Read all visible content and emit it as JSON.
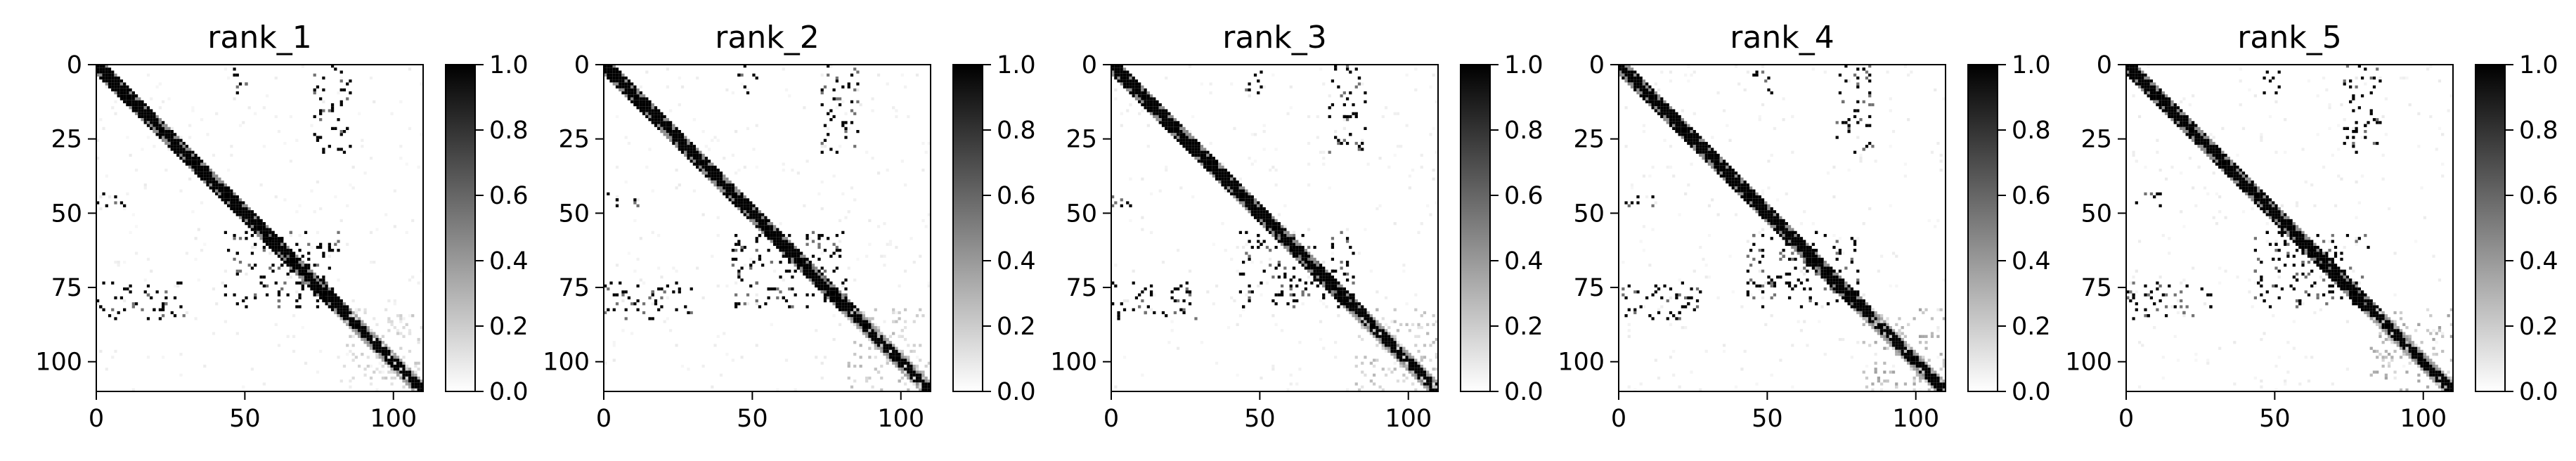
{
  "chart_data": [
    {
      "type": "heatmap",
      "title": "rank_1",
      "matrix_size": 110,
      "xlim": [
        0,
        110
      ],
      "ylim": [
        110,
        0
      ],
      "xticks": [
        "0",
        "50",
        "100"
      ],
      "yticks": [
        "0",
        "25",
        "50",
        "75",
        "100"
      ],
      "colorbar": {
        "ticks": [
          "0.0",
          "0.2",
          "0.4",
          "0.6",
          "0.8",
          "1.0"
        ],
        "range": [
          0,
          1
        ],
        "colormap": "gray_r"
      },
      "diagonal_band": {
        "from": 0,
        "to": 110,
        "value": 1.0
      },
      "block_clusters": [
        {
          "rows": [
            0,
            10
          ],
          "cols": [
            45,
            52
          ],
          "value": 1.0
        },
        {
          "rows": [
            0,
            30
          ],
          "cols": [
            73,
            86
          ],
          "value": 1.0
        },
        {
          "rows": [
            43,
            48
          ],
          "cols": [
            0,
            12
          ],
          "value": 1.0
        },
        {
          "rows": [
            73,
            86
          ],
          "cols": [
            0,
            30
          ],
          "value": 1.0
        },
        {
          "rows": [
            56,
            82
          ],
          "cols": [
            43,
            82
          ],
          "value": 1.0
        },
        {
          "rows": [
            82,
            110
          ],
          "cols": [
            82,
            110
          ],
          "value": 0.15
        }
      ]
    },
    {
      "type": "heatmap",
      "title": "rank_2",
      "matrix_size": 110,
      "xlim": [
        0,
        110
      ],
      "ylim": [
        110,
        0
      ],
      "xticks": [
        "0",
        "50",
        "100"
      ],
      "yticks": [
        "0",
        "25",
        "50",
        "75",
        "100"
      ],
      "colorbar": {
        "ticks": [
          "0.0",
          "0.2",
          "0.4",
          "0.6",
          "0.8",
          "1.0"
        ],
        "range": [
          0,
          1
        ],
        "colormap": "gray_r"
      },
      "diagonal_band": {
        "from": 0,
        "to": 110,
        "value": 1.0
      },
      "block_clusters": [
        {
          "rows": [
            0,
            10
          ],
          "cols": [
            45,
            52
          ],
          "value": 1.0
        },
        {
          "rows": [
            0,
            30
          ],
          "cols": [
            73,
            86
          ],
          "value": 1.0
        },
        {
          "rows": [
            43,
            48
          ],
          "cols": [
            0,
            12
          ],
          "value": 1.0
        },
        {
          "rows": [
            73,
            86
          ],
          "cols": [
            0,
            30
          ],
          "value": 1.0
        },
        {
          "rows": [
            56,
            82
          ],
          "cols": [
            43,
            82
          ],
          "value": 1.0
        },
        {
          "rows": [
            82,
            110
          ],
          "cols": [
            82,
            110
          ],
          "value": 0.2
        }
      ]
    },
    {
      "type": "heatmap",
      "title": "rank_3",
      "matrix_size": 110,
      "xlim": [
        0,
        110
      ],
      "ylim": [
        110,
        0
      ],
      "xticks": [
        "0",
        "50",
        "100"
      ],
      "yticks": [
        "0",
        "25",
        "50",
        "75",
        "100"
      ],
      "colorbar": {
        "ticks": [
          "0.0",
          "0.2",
          "0.4",
          "0.6",
          "0.8",
          "1.0"
        ],
        "range": [
          0,
          1
        ],
        "colormap": "gray_r"
      },
      "diagonal_band": {
        "from": 0,
        "to": 110,
        "value": 1.0
      },
      "block_clusters": [
        {
          "rows": [
            0,
            10
          ],
          "cols": [
            45,
            52
          ],
          "value": 1.0
        },
        {
          "rows": [
            0,
            30
          ],
          "cols": [
            73,
            86
          ],
          "value": 1.0
        },
        {
          "rows": [
            43,
            48
          ],
          "cols": [
            0,
            12
          ],
          "value": 1.0
        },
        {
          "rows": [
            73,
            86
          ],
          "cols": [
            0,
            30
          ],
          "value": 1.0
        },
        {
          "rows": [
            56,
            82
          ],
          "cols": [
            43,
            82
          ],
          "value": 1.0
        },
        {
          "rows": [
            82,
            110
          ],
          "cols": [
            82,
            110
          ],
          "value": 0.2
        }
      ]
    },
    {
      "type": "heatmap",
      "title": "rank_4",
      "matrix_size": 110,
      "xlim": [
        0,
        110
      ],
      "ylim": [
        110,
        0
      ],
      "xticks": [
        "0",
        "50",
        "100"
      ],
      "yticks": [
        "0",
        "25",
        "50",
        "75",
        "100"
      ],
      "colorbar": {
        "ticks": [
          "0.0",
          "0.2",
          "0.4",
          "0.6",
          "0.8",
          "1.0"
        ],
        "range": [
          0,
          1
        ],
        "colormap": "gray_r"
      },
      "diagonal_band": {
        "from": 0,
        "to": 110,
        "value": 1.0
      },
      "block_clusters": [
        {
          "rows": [
            0,
            10
          ],
          "cols": [
            45,
            52
          ],
          "value": 1.0
        },
        {
          "rows": [
            0,
            30
          ],
          "cols": [
            73,
            86
          ],
          "value": 1.0
        },
        {
          "rows": [
            43,
            48
          ],
          "cols": [
            0,
            12
          ],
          "value": 1.0
        },
        {
          "rows": [
            73,
            86
          ],
          "cols": [
            0,
            30
          ],
          "value": 1.0
        },
        {
          "rows": [
            56,
            82
          ],
          "cols": [
            43,
            82
          ],
          "value": 1.0
        },
        {
          "rows": [
            82,
            110
          ],
          "cols": [
            82,
            110
          ],
          "value": 0.25
        }
      ]
    },
    {
      "type": "heatmap",
      "title": "rank_5",
      "matrix_size": 110,
      "xlim": [
        0,
        110
      ],
      "ylim": [
        110,
        0
      ],
      "xticks": [
        "0",
        "50",
        "100"
      ],
      "yticks": [
        "0",
        "25",
        "50",
        "75",
        "100"
      ],
      "colorbar": {
        "ticks": [
          "0.0",
          "0.2",
          "0.4",
          "0.6",
          "0.8",
          "1.0"
        ],
        "range": [
          0,
          1
        ],
        "colormap": "gray_r"
      },
      "diagonal_band": {
        "from": 0,
        "to": 110,
        "value": 1.0
      },
      "block_clusters": [
        {
          "rows": [
            0,
            10
          ],
          "cols": [
            45,
            52
          ],
          "value": 1.0
        },
        {
          "rows": [
            0,
            30
          ],
          "cols": [
            73,
            86
          ],
          "value": 1.0
        },
        {
          "rows": [
            43,
            48
          ],
          "cols": [
            0,
            12
          ],
          "value": 1.0
        },
        {
          "rows": [
            73,
            86
          ],
          "cols": [
            0,
            30
          ],
          "value": 1.0
        },
        {
          "rows": [
            56,
            82
          ],
          "cols": [
            43,
            82
          ],
          "value": 1.0
        },
        {
          "rows": [
            82,
            110
          ],
          "cols": [
            82,
            110
          ],
          "value": 0.25
        }
      ]
    }
  ]
}
